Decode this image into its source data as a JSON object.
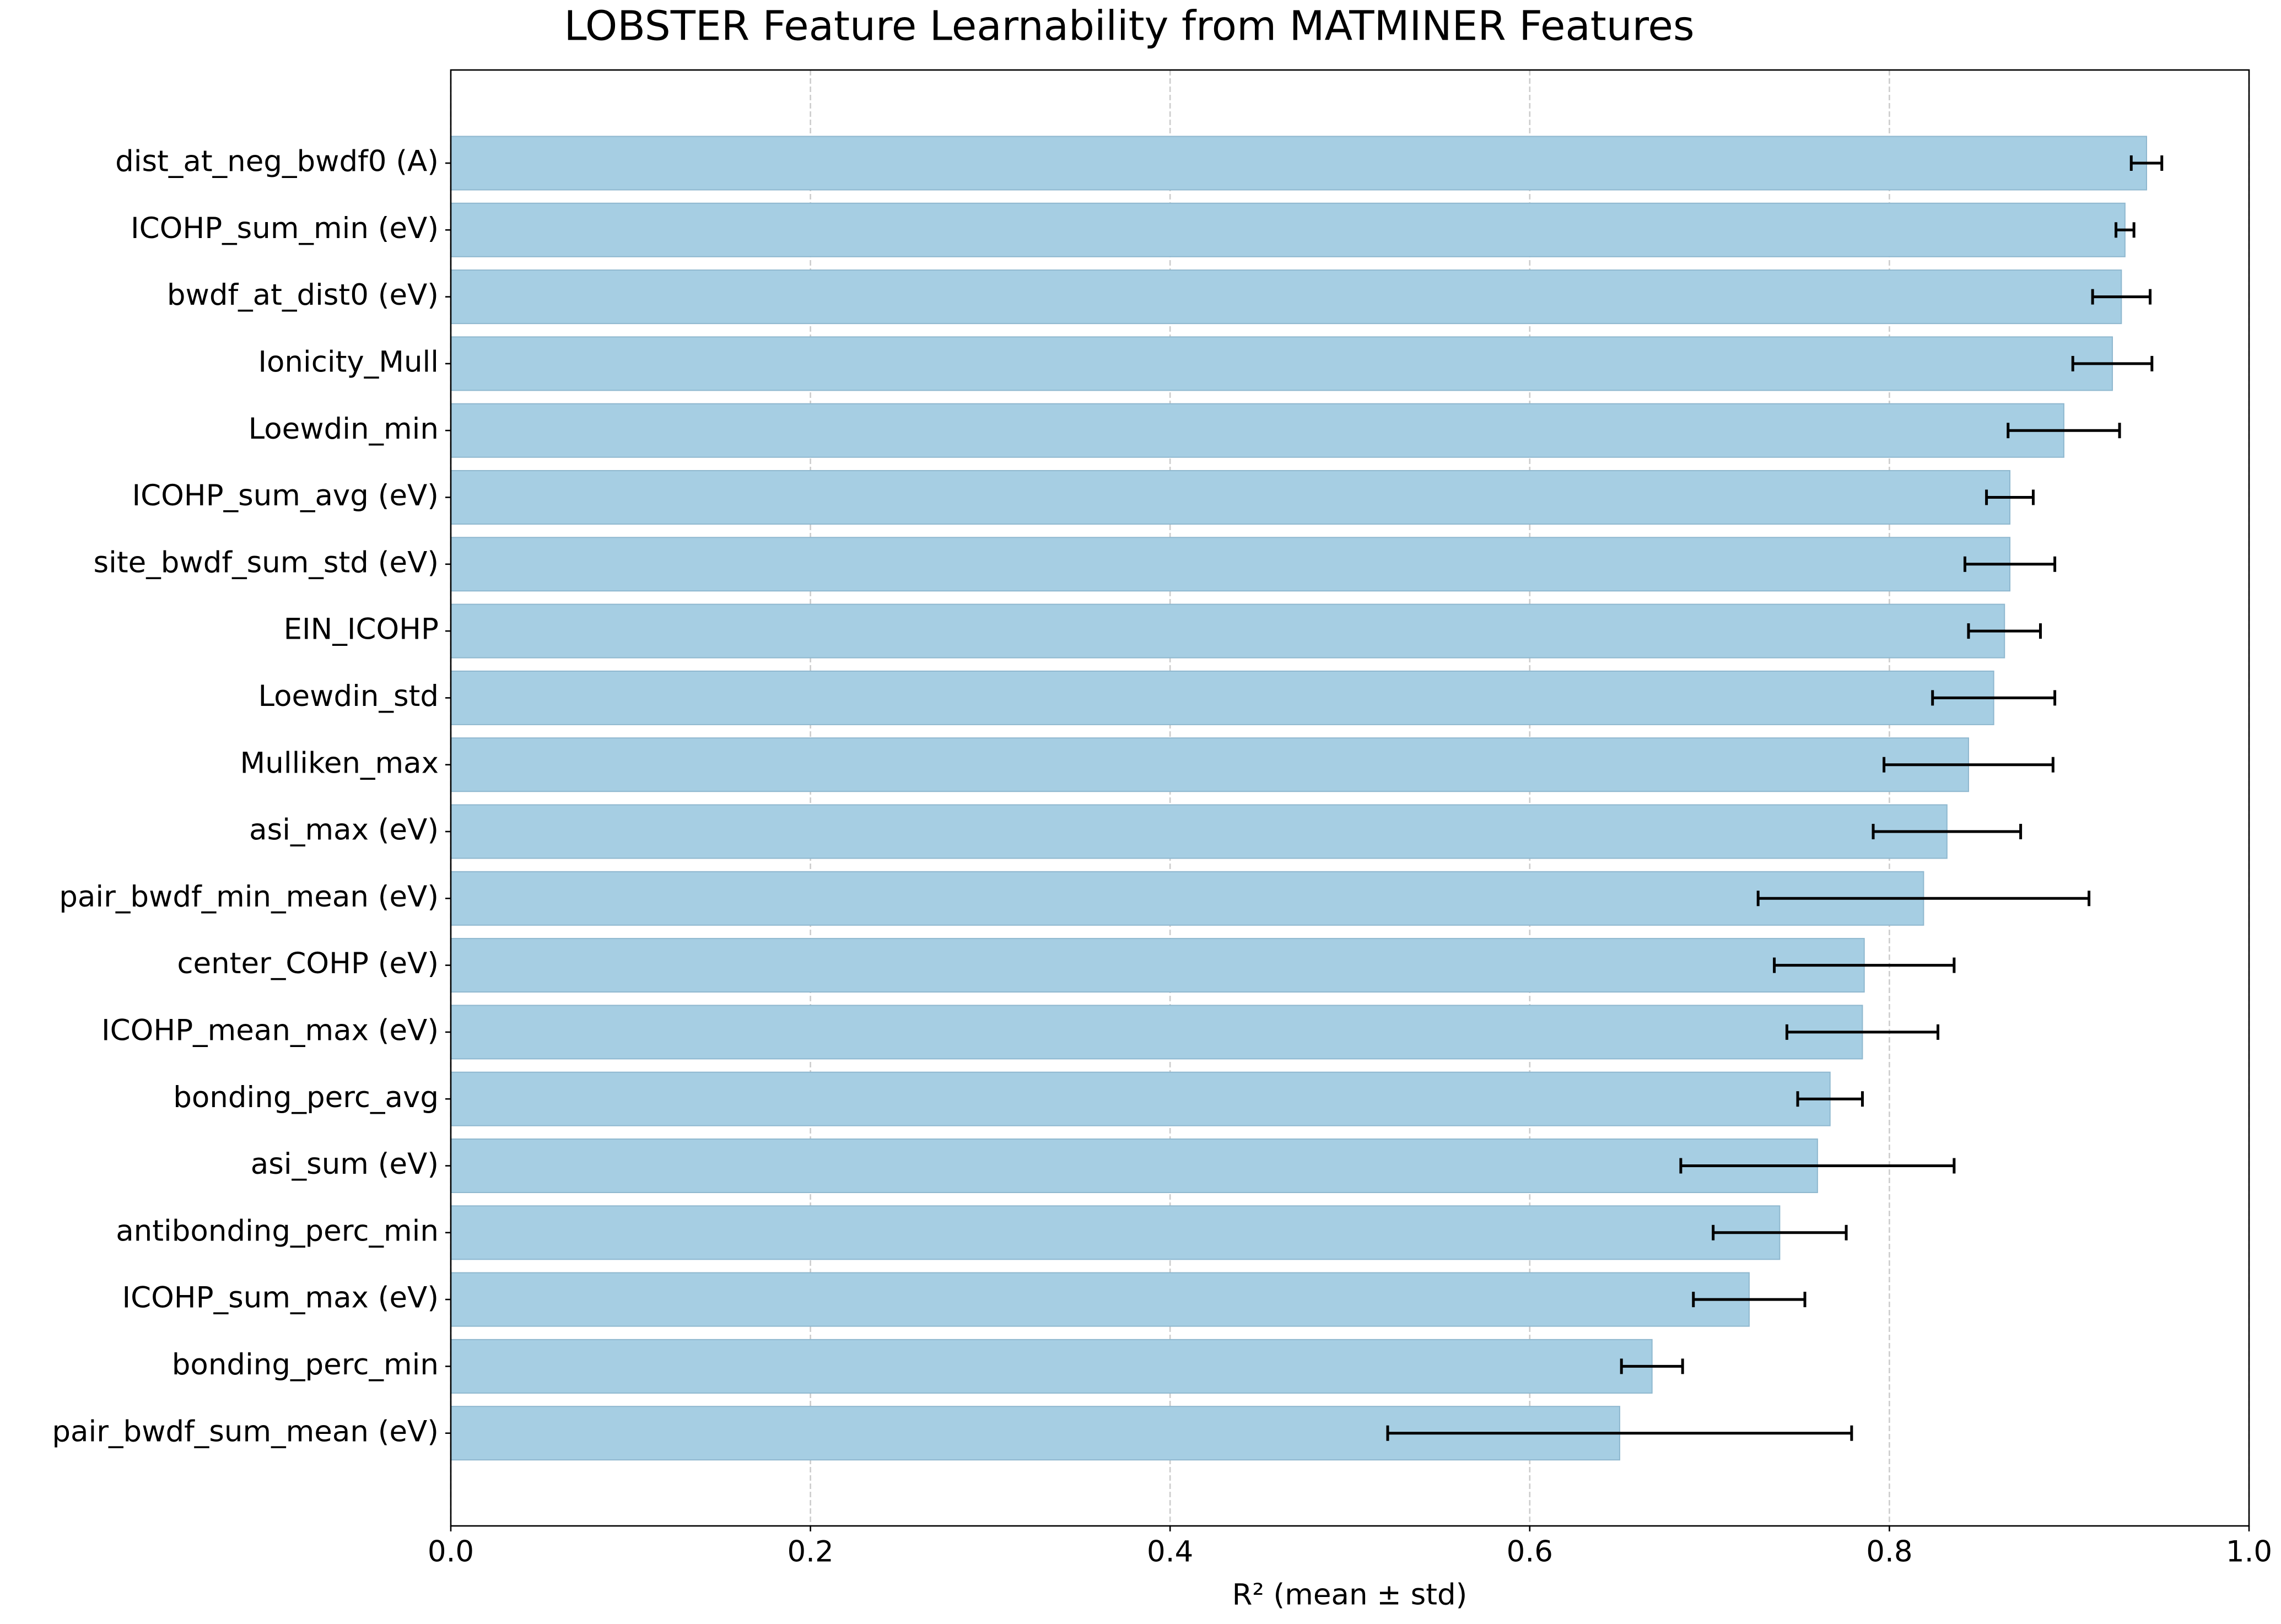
{
  "chart_data": {
    "type": "barh",
    "title": "LOBSTER Feature Learnability from MATMINER Features",
    "xlabel": "R² (mean ± std)",
    "categories": [
      "dist_at_neg_bwdf0 (A)",
      "ICOHP_sum_min (eV)",
      "bwdf_at_dist0 (eV)",
      "Ionicity_Mull",
      "Loewdin_min",
      "ICOHP_sum_avg (eV)",
      "site_bwdf_sum_std (eV)",
      "EIN_ICOHP",
      "Loewdin_std",
      "Mulliken_max",
      "asi_max (eV)",
      "pair_bwdf_min_mean (eV)",
      "center_COHP (eV)",
      "ICOHP_mean_max (eV)",
      "bonding_perc_avg",
      "asi_sum (eV)",
      "antibonding_perc_min",
      "ICOHP_sum_max (eV)",
      "bonding_perc_min",
      "pair_bwdf_sum_mean (eV)"
    ],
    "values": [
      0.943,
      0.931,
      0.929,
      0.924,
      0.897,
      0.867,
      0.867,
      0.864,
      0.858,
      0.844,
      0.832,
      0.819,
      0.786,
      0.785,
      0.767,
      0.76,
      0.739,
      0.722,
      0.668,
      0.65
    ],
    "errors": [
      0.0085,
      0.005,
      0.016,
      0.022,
      0.031,
      0.013,
      0.025,
      0.02,
      0.034,
      0.047,
      0.041,
      0.092,
      0.05,
      0.042,
      0.018,
      0.076,
      0.037,
      0.031,
      0.017,
      0.129
    ],
    "color": "#a6cee3",
    "xlim": [
      0,
      1
    ],
    "xticks": [
      {
        "value": 0,
        "label": "0.0"
      },
      0.2,
      0.4,
      0.6,
      0.8,
      {
        "value": 1,
        "label": "1.0"
      }
    ],
    "grid": true
  }
}
